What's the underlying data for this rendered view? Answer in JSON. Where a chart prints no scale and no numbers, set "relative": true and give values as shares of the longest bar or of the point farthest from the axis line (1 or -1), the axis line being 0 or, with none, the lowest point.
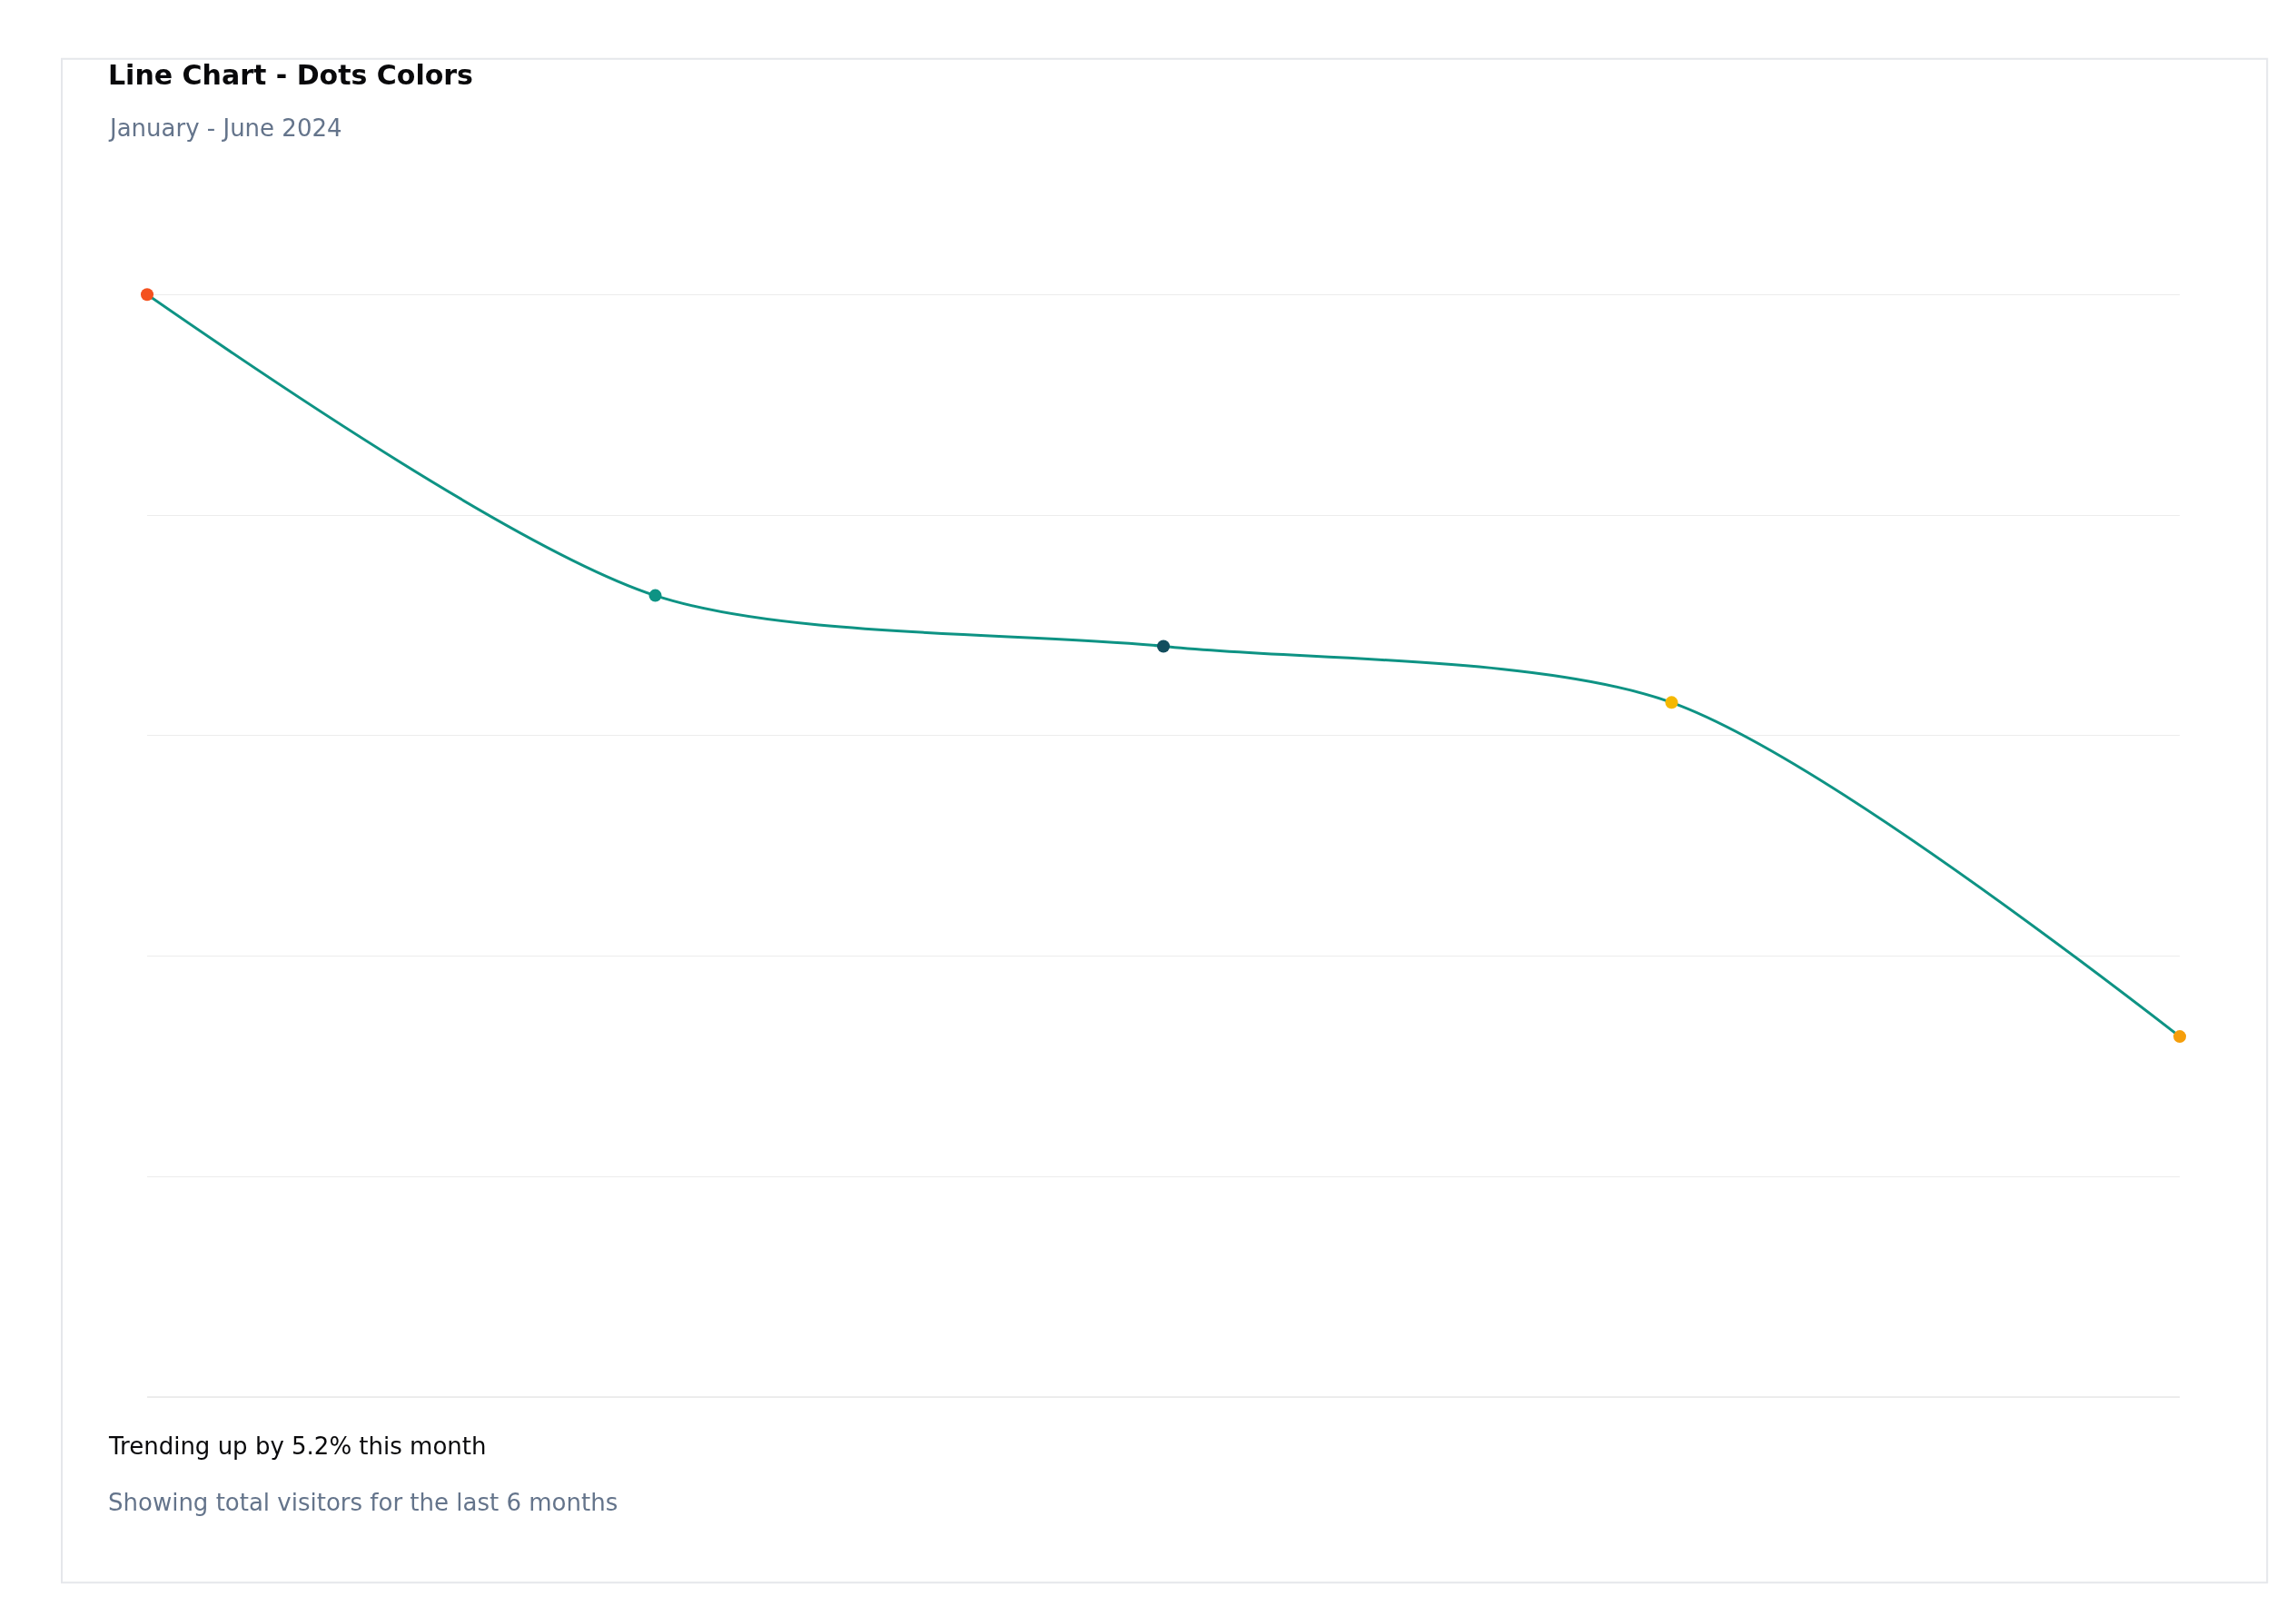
{
  "chart_data": {
    "type": "line",
    "title": "Line Chart - Dots Colors",
    "subtitle": "January - June 2024",
    "relative": true,
    "categories": [
      null,
      null,
      null,
      null,
      null
    ],
    "series": [
      {
        "color": "#0e9384",
        "values": [
          1,
          0.727,
          0.681,
          0.63,
          0.327
        ],
        "colors": [
          "#f4511e",
          "#0e9384",
          "#134e5e",
          "#f5b800",
          "#f59e0b"
        ]
      }
    ],
    "annotations": [
      "Trending up by 5.2% this month",
      "Showing total visitors for the last 6 months"
    ],
    "grid": "y",
    "legend": false,
    "marker": "circle",
    "line_style": "solid"
  }
}
